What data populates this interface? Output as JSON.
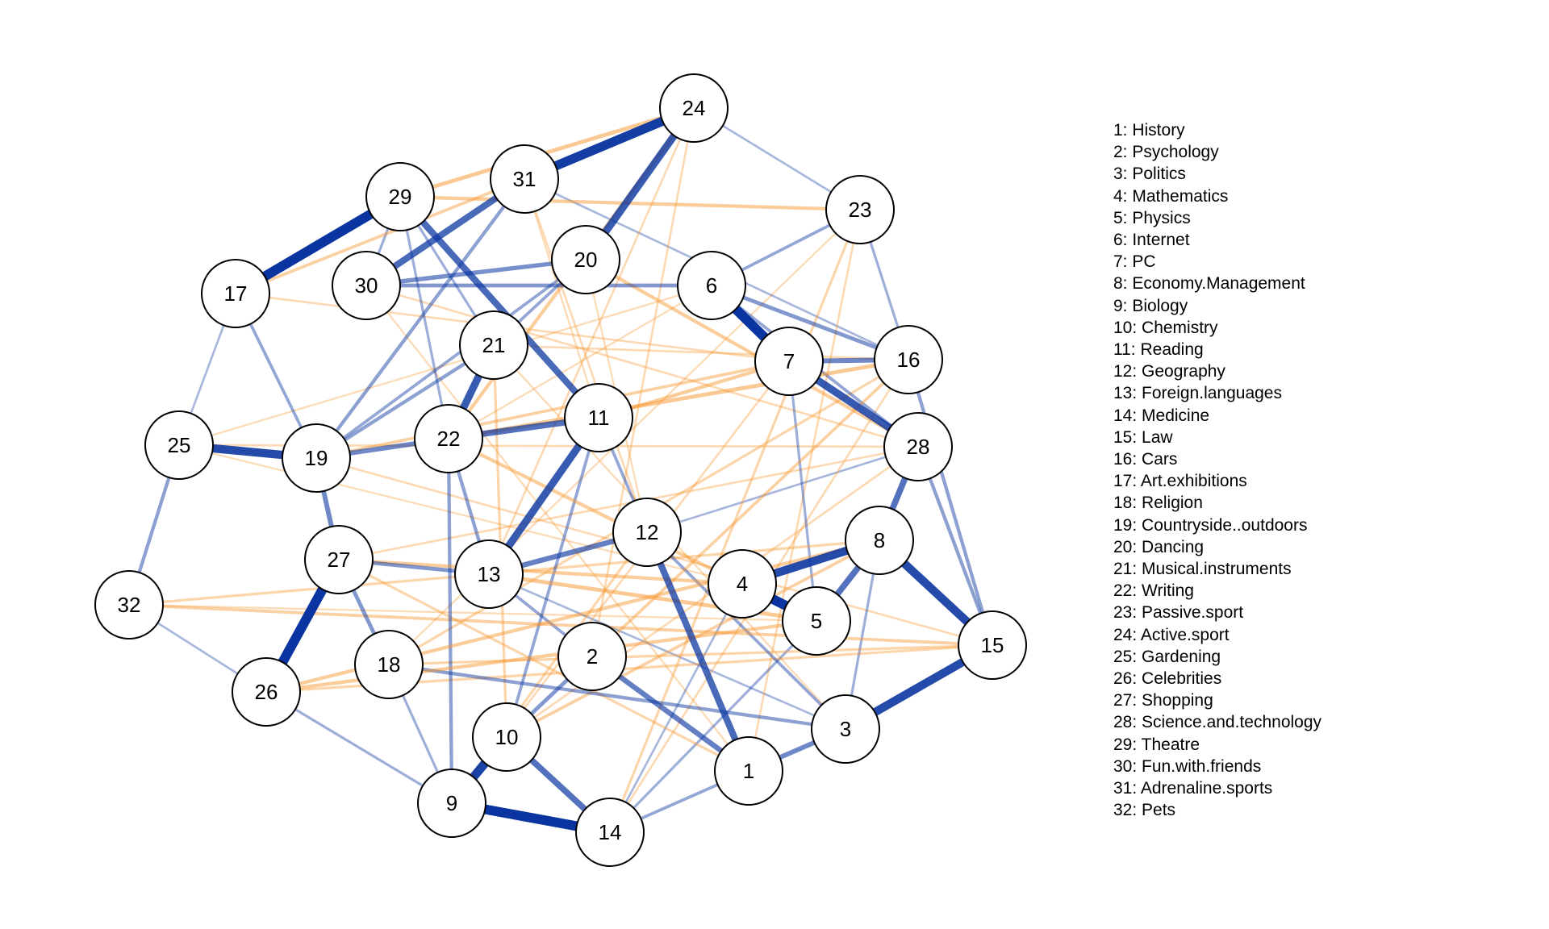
{
  "colors": {
    "positive": "#0a35a0",
    "negative": "#f7952b",
    "node_fill": "#ffffff",
    "node_stroke": "#000000"
  },
  "nodes": [
    {
      "id": "1",
      "label": "History"
    },
    {
      "id": "2",
      "label": "Psychology"
    },
    {
      "id": "3",
      "label": "Politics"
    },
    {
      "id": "4",
      "label": "Mathematics"
    },
    {
      "id": "5",
      "label": "Physics"
    },
    {
      "id": "6",
      "label": "Internet"
    },
    {
      "id": "7",
      "label": "PC"
    },
    {
      "id": "8",
      "label": "Economy.Management"
    },
    {
      "id": "9",
      "label": "Biology"
    },
    {
      "id": "10",
      "label": "Chemistry"
    },
    {
      "id": "11",
      "label": "Reading"
    },
    {
      "id": "12",
      "label": "Geography"
    },
    {
      "id": "13",
      "label": "Foreign.languages"
    },
    {
      "id": "14",
      "label": "Medicine"
    },
    {
      "id": "15",
      "label": "Law"
    },
    {
      "id": "16",
      "label": "Cars"
    },
    {
      "id": "17",
      "label": "Art.exhibitions"
    },
    {
      "id": "18",
      "label": "Religion"
    },
    {
      "id": "19",
      "label": "Countryside..outdoors"
    },
    {
      "id": "20",
      "label": "Dancing"
    },
    {
      "id": "21",
      "label": "Musical.instruments"
    },
    {
      "id": "22",
      "label": "Writing"
    },
    {
      "id": "23",
      "label": "Passive.sport"
    },
    {
      "id": "24",
      "label": "Active.sport"
    },
    {
      "id": "25",
      "label": "Gardening"
    },
    {
      "id": "26",
      "label": "Celebrities"
    },
    {
      "id": "27",
      "label": "Shopping"
    },
    {
      "id": "28",
      "label": "Science.and.technology"
    },
    {
      "id": "29",
      "label": "Theatre"
    },
    {
      "id": "30",
      "label": "Fun.with.friends"
    },
    {
      "id": "31",
      "label": "Adrenaline.sports"
    },
    {
      "id": "32",
      "label": "Pets"
    }
  ],
  "legend": [
    "1: History",
    "2: Psychology",
    "3: Politics",
    "4: Mathematics",
    "5: Physics",
    "6: Internet",
    "7: PC",
    "8: Economy.Management",
    "9: Biology",
    "10: Chemistry",
    "11: Reading",
    "12: Geography",
    "13: Foreign.languages",
    "14: Medicine",
    "15: Law",
    "16: Cars",
    "17: Art.exhibitions",
    "18: Religion",
    "19: Countryside..outdoors",
    "20: Dancing",
    "21: Musical.instruments",
    "22: Writing",
    "23: Passive.sport",
    "24: Active.sport",
    "25: Gardening",
    "26: Celebrities",
    "27: Shopping",
    "28: Science.and.technology",
    "29: Theatre",
    "30: Fun.with.friends",
    "31: Adrenaline.sports",
    "32: Pets"
  ],
  "edges": [
    {
      "source": "24",
      "target": "31",
      "weight": 0.95,
      "sign": "positive"
    },
    {
      "source": "24",
      "target": "20",
      "weight": 0.75,
      "sign": "positive"
    },
    {
      "source": "29",
      "target": "17",
      "weight": 1.0,
      "sign": "positive"
    },
    {
      "source": "31",
      "target": "30",
      "weight": 0.65,
      "sign": "positive"
    },
    {
      "source": "29",
      "target": "11",
      "weight": 0.65,
      "sign": "positive"
    },
    {
      "source": "6",
      "target": "7",
      "weight": 1.0,
      "sign": "positive"
    },
    {
      "source": "7",
      "target": "28",
      "weight": 0.75,
      "sign": "positive"
    },
    {
      "source": "7",
      "target": "16",
      "weight": 0.45,
      "sign": "positive"
    },
    {
      "source": "25",
      "target": "19",
      "weight": 0.85,
      "sign": "positive"
    },
    {
      "source": "21",
      "target": "22",
      "weight": 0.75,
      "sign": "positive"
    },
    {
      "source": "19",
      "target": "22",
      "weight": 0.45,
      "sign": "positive"
    },
    {
      "source": "22",
      "target": "11",
      "weight": 0.6,
      "sign": "positive"
    },
    {
      "source": "11",
      "target": "13",
      "weight": 0.75,
      "sign": "positive"
    },
    {
      "source": "12",
      "target": "1",
      "weight": 0.65,
      "sign": "positive"
    },
    {
      "source": "4",
      "target": "5",
      "weight": 1.0,
      "sign": "positive"
    },
    {
      "source": "4",
      "target": "8",
      "weight": 0.85,
      "sign": "positive"
    },
    {
      "source": "8",
      "target": "15",
      "weight": 0.85,
      "sign": "positive"
    },
    {
      "source": "3",
      "target": "15",
      "weight": 0.85,
      "sign": "positive"
    },
    {
      "source": "8",
      "target": "28",
      "weight": 0.6,
      "sign": "positive"
    },
    {
      "source": "5",
      "target": "8",
      "weight": 0.6,
      "sign": "positive"
    },
    {
      "source": "27",
      "target": "26",
      "weight": 1.0,
      "sign": "positive"
    },
    {
      "source": "10",
      "target": "9",
      "weight": 0.9,
      "sign": "positive"
    },
    {
      "source": "9",
      "target": "14",
      "weight": 1.0,
      "sign": "positive"
    },
    {
      "source": "10",
      "target": "14",
      "weight": 0.6,
      "sign": "positive"
    },
    {
      "source": "2",
      "target": "1",
      "weight": 0.5,
      "sign": "positive"
    },
    {
      "source": "13",
      "target": "12",
      "weight": 0.5,
      "sign": "positive"
    },
    {
      "source": "1",
      "target": "3",
      "weight": 0.45,
      "sign": "positive"
    },
    {
      "source": "20",
      "target": "30",
      "weight": 0.4,
      "sign": "positive"
    },
    {
      "source": "30",
      "target": "6",
      "weight": 0.35,
      "sign": "positive"
    },
    {
      "source": "19",
      "target": "27",
      "weight": 0.45,
      "sign": "positive"
    },
    {
      "source": "27",
      "target": "18",
      "weight": 0.35,
      "sign": "positive"
    },
    {
      "source": "27",
      "target": "13",
      "weight": 0.35,
      "sign": "positive"
    },
    {
      "source": "25",
      "target": "32",
      "weight": 0.3,
      "sign": "positive"
    },
    {
      "source": "28",
      "target": "15",
      "weight": 0.3,
      "sign": "positive"
    },
    {
      "source": "16",
      "target": "15",
      "weight": 0.3,
      "sign": "positive"
    },
    {
      "source": "6",
      "target": "16",
      "weight": 0.35,
      "sign": "positive"
    },
    {
      "source": "2",
      "target": "10",
      "weight": 0.35,
      "sign": "positive"
    },
    {
      "source": "18",
      "target": "3",
      "weight": 0.3,
      "sign": "positive"
    },
    {
      "source": "22",
      "target": "13",
      "weight": 0.3,
      "sign": "positive"
    },
    {
      "source": "21",
      "target": "19",
      "weight": 0.3,
      "sign": "positive"
    },
    {
      "source": "22",
      "target": "9",
      "weight": 0.3,
      "sign": "positive"
    },
    {
      "source": "2",
      "target": "13",
      "weight": 0.25,
      "sign": "positive"
    },
    {
      "source": "31",
      "target": "19",
      "weight": 0.3,
      "sign": "positive"
    },
    {
      "source": "20",
      "target": "19",
      "weight": 0.25,
      "sign": "positive"
    },
    {
      "source": "1",
      "target": "14",
      "weight": 0.25,
      "sign": "positive"
    },
    {
      "source": "11",
      "target": "10",
      "weight": 0.25,
      "sign": "positive"
    },
    {
      "source": "12",
      "target": "3",
      "weight": 0.25,
      "sign": "positive"
    },
    {
      "source": "23",
      "target": "6",
      "weight": 0.25,
      "sign": "positive"
    },
    {
      "source": "23",
      "target": "16",
      "weight": 0.2,
      "sign": "positive"
    },
    {
      "source": "24",
      "target": "23",
      "weight": 0.15,
      "sign": "positive"
    },
    {
      "source": "17",
      "target": "19",
      "weight": 0.25,
      "sign": "positive"
    },
    {
      "source": "29",
      "target": "30",
      "weight": 0.2,
      "sign": "positive"
    },
    {
      "source": "17",
      "target": "25",
      "weight": 0.15,
      "sign": "positive"
    },
    {
      "source": "26",
      "target": "9",
      "weight": 0.2,
      "sign": "positive"
    },
    {
      "source": "32",
      "target": "26",
      "weight": 0.15,
      "sign": "positive"
    },
    {
      "source": "18",
      "target": "9",
      "weight": 0.2,
      "sign": "positive"
    },
    {
      "source": "21",
      "target": "29",
      "weight": 0.2,
      "sign": "positive"
    },
    {
      "source": "20",
      "target": "21",
      "weight": 0.25,
      "sign": "positive"
    },
    {
      "source": "7",
      "target": "5",
      "weight": 0.2,
      "sign": "positive"
    },
    {
      "source": "3",
      "target": "8",
      "weight": 0.2,
      "sign": "positive"
    },
    {
      "source": "14",
      "target": "5",
      "weight": 0.2,
      "sign": "positive"
    },
    {
      "source": "6",
      "target": "28",
      "weight": 0.25,
      "sign": "positive"
    },
    {
      "source": "11",
      "target": "12",
      "weight": 0.25,
      "sign": "positive"
    },
    {
      "source": "31",
      "target": "16",
      "weight": 0.15,
      "sign": "positive"
    },
    {
      "source": "13",
      "target": "3",
      "weight": 0.15,
      "sign": "positive"
    },
    {
      "source": "29",
      "target": "22",
      "weight": 0.2,
      "sign": "positive"
    },
    {
      "source": "4",
      "target": "14",
      "weight": 0.15,
      "sign": "positive"
    },
    {
      "source": "12",
      "target": "28",
      "weight": 0.15,
      "sign": "positive"
    },
    {
      "source": "24",
      "target": "29",
      "weight": 0.35,
      "sign": "negative"
    },
    {
      "source": "29",
      "target": "23",
      "weight": 0.3,
      "sign": "negative"
    },
    {
      "source": "17",
      "target": "31",
      "weight": 0.25,
      "sign": "negative"
    },
    {
      "source": "24",
      "target": "22",
      "weight": 0.3,
      "sign": "negative"
    },
    {
      "source": "20",
      "target": "28",
      "weight": 0.3,
      "sign": "negative"
    },
    {
      "source": "22",
      "target": "16",
      "weight": 0.35,
      "sign": "negative"
    },
    {
      "source": "11",
      "target": "7",
      "weight": 0.3,
      "sign": "negative"
    },
    {
      "source": "19",
      "target": "7",
      "weight": 0.25,
      "sign": "negative"
    },
    {
      "source": "27",
      "target": "4",
      "weight": 0.3,
      "sign": "negative"
    },
    {
      "source": "26",
      "target": "8",
      "weight": 0.3,
      "sign": "negative"
    },
    {
      "source": "26",
      "target": "5",
      "weight": 0.3,
      "sign": "negative"
    },
    {
      "source": "13",
      "target": "5",
      "weight": 0.35,
      "sign": "negative"
    },
    {
      "source": "22",
      "target": "5",
      "weight": 0.3,
      "sign": "negative"
    },
    {
      "source": "18",
      "target": "16",
      "weight": 0.2,
      "sign": "negative"
    },
    {
      "source": "10",
      "target": "8",
      "weight": 0.25,
      "sign": "negative"
    },
    {
      "source": "9",
      "target": "12",
      "weight": 0.2,
      "sign": "negative"
    },
    {
      "source": "32",
      "target": "15",
      "weight": 0.25,
      "sign": "negative"
    },
    {
      "source": "26",
      "target": "15",
      "weight": 0.2,
      "sign": "negative"
    },
    {
      "source": "2",
      "target": "16",
      "weight": 0.25,
      "sign": "negative"
    },
    {
      "source": "10",
      "target": "21",
      "weight": 0.2,
      "sign": "negative"
    },
    {
      "source": "14",
      "target": "23",
      "weight": 0.2,
      "sign": "negative"
    },
    {
      "source": "1",
      "target": "23",
      "weight": 0.15,
      "sign": "negative"
    },
    {
      "source": "32",
      "target": "8",
      "weight": 0.2,
      "sign": "negative"
    },
    {
      "source": "18",
      "target": "15",
      "weight": 0.2,
      "sign": "negative"
    },
    {
      "source": "27",
      "target": "1",
      "weight": 0.2,
      "sign": "negative"
    },
    {
      "source": "17",
      "target": "7",
      "weight": 0.15,
      "sign": "negative"
    },
    {
      "source": "21",
      "target": "16",
      "weight": 0.15,
      "sign": "negative"
    },
    {
      "source": "31",
      "target": "12",
      "weight": 0.15,
      "sign": "negative"
    },
    {
      "source": "30",
      "target": "28",
      "weight": 0.15,
      "sign": "negative"
    },
    {
      "source": "25",
      "target": "28",
      "weight": 0.15,
      "sign": "negative"
    },
    {
      "source": "25",
      "target": "6",
      "weight": 0.12,
      "sign": "negative"
    },
    {
      "source": "19",
      "target": "15",
      "weight": 0.15,
      "sign": "negative"
    },
    {
      "source": "13",
      "target": "24",
      "weight": 0.15,
      "sign": "negative"
    },
    {
      "source": "2",
      "target": "24",
      "weight": 0.15,
      "sign": "negative"
    },
    {
      "source": "9",
      "target": "7",
      "weight": 0.15,
      "sign": "negative"
    },
    {
      "source": "10",
      "target": "28",
      "weight": 0.15,
      "sign": "negative"
    },
    {
      "source": "14",
      "target": "16",
      "weight": 0.15,
      "sign": "negative"
    },
    {
      "source": "27",
      "target": "28",
      "weight": 0.15,
      "sign": "negative"
    },
    {
      "source": "3",
      "target": "21",
      "weight": 0.12,
      "sign": "negative"
    },
    {
      "source": "11",
      "target": "31",
      "weight": 0.12,
      "sign": "negative"
    },
    {
      "source": "6",
      "target": "22",
      "weight": 0.12,
      "sign": "negative"
    },
    {
      "source": "23",
      "target": "18",
      "weight": 0.12,
      "sign": "negative"
    },
    {
      "source": "12",
      "target": "20",
      "weight": 0.12,
      "sign": "negative"
    },
    {
      "source": "30",
      "target": "1",
      "weight": 0.12,
      "sign": "negative"
    },
    {
      "source": "32",
      "target": "5",
      "weight": 0.12,
      "sign": "negative"
    },
    {
      "source": "25",
      "target": "4",
      "weight": 0.12,
      "sign": "negative"
    }
  ]
}
